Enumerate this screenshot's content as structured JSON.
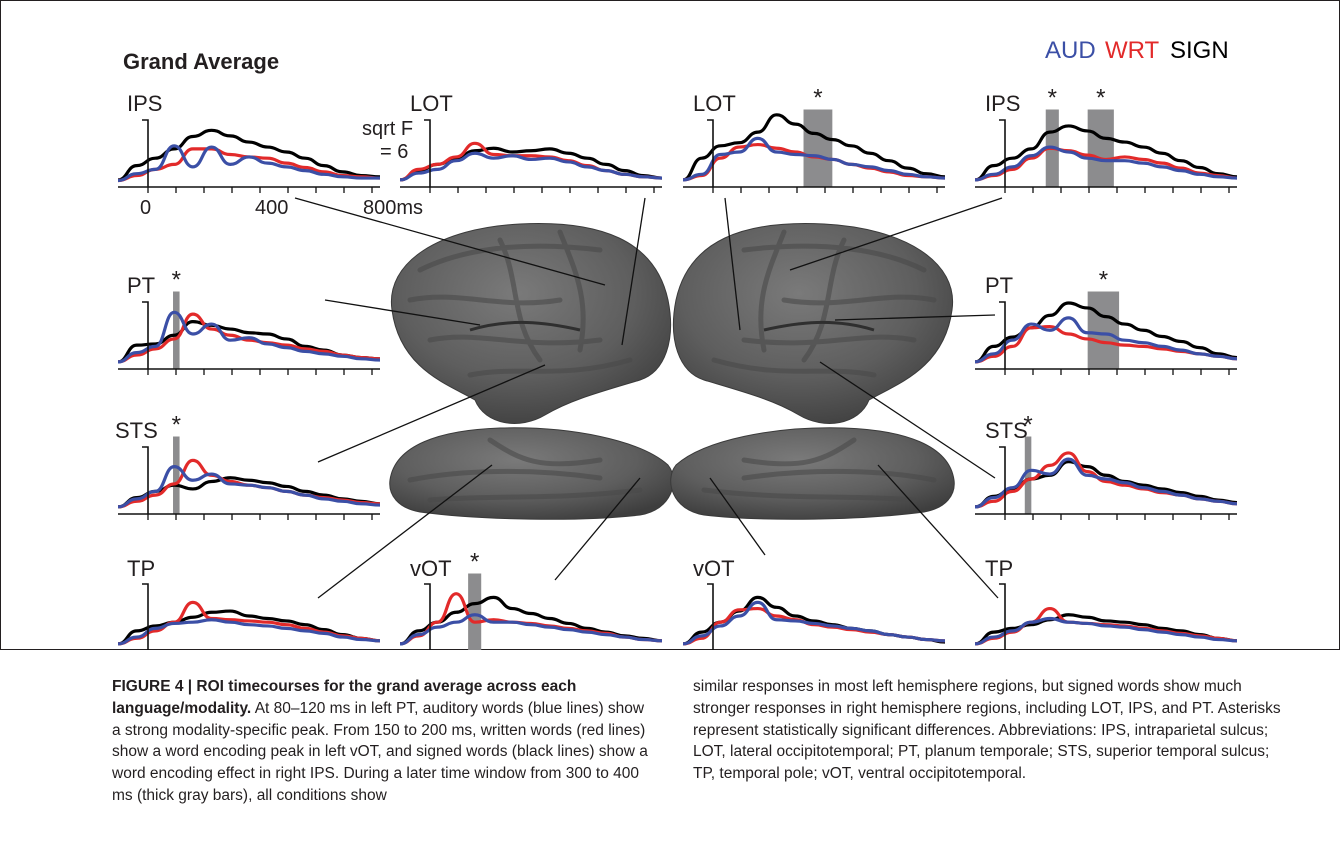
{
  "figure": {
    "panel_title": "Grand Average",
    "legend": [
      {
        "label": "AUD",
        "color": "#3b4fa6"
      },
      {
        "label": "WRT",
        "color": "#e22a2a"
      },
      {
        "label": "SIGN",
        "color": "#000000"
      }
    ],
    "scale": {
      "line1": "sqrt F",
      "line2": "= 6"
    },
    "time_ticks": [
      "0",
      "400",
      "800ms"
    ],
    "significance_marker": "*",
    "bar_color": "#8c8c8e"
  },
  "chart_data": [
    {
      "type": "line",
      "roi": "IPS",
      "hemisphere": "left",
      "series": [
        {
          "name": "SIGN",
          "values": [
            0.05,
            0.28,
            0.4,
            0.55,
            0.75,
            0.85,
            0.76,
            0.66,
            0.58,
            0.5,
            0.4,
            0.28,
            0.18,
            0.12,
            0.1
          ]
        },
        {
          "name": "WRT",
          "values": [
            0.04,
            0.12,
            0.22,
            0.3,
            0.55,
            0.55,
            0.46,
            0.42,
            0.4,
            0.32,
            0.25,
            0.18,
            0.12,
            0.1,
            0.08
          ]
        },
        {
          "name": "AUD",
          "values": [
            0.04,
            0.15,
            0.22,
            0.6,
            0.26,
            0.58,
            0.3,
            0.42,
            0.32,
            0.26,
            0.2,
            0.14,
            0.1,
            0.08,
            0.08
          ]
        }
      ],
      "sig": []
    },
    {
      "type": "line",
      "roi": "LOT",
      "hemisphere": "left",
      "series": [
        {
          "name": "SIGN",
          "values": [
            0.05,
            0.2,
            0.3,
            0.4,
            0.52,
            0.56,
            0.5,
            0.52,
            0.55,
            0.48,
            0.4,
            0.3,
            0.2,
            0.12,
            0.08
          ]
        },
        {
          "name": "WRT",
          "values": [
            0.05,
            0.22,
            0.3,
            0.42,
            0.64,
            0.46,
            0.44,
            0.44,
            0.42,
            0.36,
            0.28,
            0.2,
            0.14,
            0.1,
            0.08
          ]
        },
        {
          "name": "AUD",
          "values": [
            0.05,
            0.16,
            0.22,
            0.36,
            0.48,
            0.4,
            0.44,
            0.38,
            0.4,
            0.34,
            0.26,
            0.2,
            0.14,
            0.1,
            0.08
          ]
        }
      ],
      "sig": []
    },
    {
      "type": "line",
      "roi": "LOT",
      "hemisphere": "right",
      "series": [
        {
          "name": "SIGN",
          "values": [
            0.05,
            0.4,
            0.6,
            0.65,
            0.82,
            1.1,
            0.95,
            0.8,
            0.7,
            0.6,
            0.48,
            0.36,
            0.24,
            0.15,
            0.1
          ]
        },
        {
          "name": "WRT",
          "values": [
            0.05,
            0.12,
            0.4,
            0.58,
            0.62,
            0.56,
            0.5,
            0.42,
            0.38,
            0.3,
            0.24,
            0.18,
            0.12,
            0.1,
            0.08
          ]
        },
        {
          "name": "AUD",
          "values": [
            0.05,
            0.14,
            0.46,
            0.5,
            0.72,
            0.5,
            0.46,
            0.44,
            0.38,
            0.3,
            0.26,
            0.2,
            0.14,
            0.1,
            0.08
          ]
        }
      ],
      "sig": [
        {
          "from": 0.46,
          "to": 0.57
        }
      ]
    },
    {
      "type": "line",
      "roi": "IPS",
      "hemisphere": "right",
      "series": [
        {
          "name": "SIGN",
          "values": [
            0.05,
            0.28,
            0.4,
            0.55,
            0.82,
            0.92,
            0.84,
            0.72,
            0.66,
            0.58,
            0.48,
            0.36,
            0.25,
            0.15,
            0.1
          ]
        },
        {
          "name": "WRT",
          "values": [
            0.05,
            0.12,
            0.22,
            0.4,
            0.56,
            0.52,
            0.45,
            0.38,
            0.42,
            0.38,
            0.32,
            0.24,
            0.16,
            0.12,
            0.08
          ]
        },
        {
          "name": "AUD",
          "values": [
            0.05,
            0.14,
            0.26,
            0.44,
            0.58,
            0.5,
            0.4,
            0.36,
            0.36,
            0.32,
            0.26,
            0.2,
            0.14,
            0.1,
            0.08
          ]
        }
      ],
      "sig": [
        {
          "from": 0.27,
          "to": 0.32
        },
        {
          "from": 0.43,
          "to": 0.53
        }
      ]
    },
    {
      "type": "line",
      "roi": "PT",
      "hemisphere": "left",
      "series": [
        {
          "name": "SIGN",
          "values": [
            0.05,
            0.32,
            0.34,
            0.48,
            0.7,
            0.64,
            0.58,
            0.52,
            0.5,
            0.42,
            0.3,
            0.24,
            0.16,
            0.12,
            0.1
          ]
        },
        {
          "name": "WRT",
          "values": [
            0.05,
            0.16,
            0.26,
            0.42,
            0.82,
            0.58,
            0.48,
            0.4,
            0.36,
            0.32,
            0.26,
            0.22,
            0.16,
            0.12,
            0.1
          ]
        },
        {
          "name": "AUD",
          "values": [
            0.05,
            0.2,
            0.3,
            0.85,
            0.5,
            0.66,
            0.4,
            0.44,
            0.34,
            0.28,
            0.22,
            0.18,
            0.14,
            0.1,
            0.08
          ]
        }
      ],
      "sig": [
        {
          "from": 0.21,
          "to": 0.235
        }
      ]
    },
    {
      "type": "line",
      "roi": "PT",
      "hemisphere": "right",
      "series": [
        {
          "name": "SIGN",
          "values": [
            0.05,
            0.3,
            0.45,
            0.6,
            0.8,
            1.0,
            0.92,
            0.78,
            0.66,
            0.56,
            0.46,
            0.38,
            0.28,
            0.18,
            0.12
          ]
        },
        {
          "name": "WRT",
          "values": [
            0.05,
            0.14,
            0.3,
            0.6,
            0.62,
            0.5,
            0.42,
            0.36,
            0.32,
            0.3,
            0.26,
            0.22,
            0.18,
            0.14,
            0.1
          ]
        },
        {
          "name": "AUD",
          "values": [
            0.05,
            0.18,
            0.4,
            0.66,
            0.56,
            0.76,
            0.52,
            0.5,
            0.4,
            0.36,
            0.3,
            0.24,
            0.18,
            0.14,
            0.1
          ]
        }
      ],
      "sig": [
        {
          "from": 0.43,
          "to": 0.55
        }
      ]
    },
    {
      "type": "line",
      "roi": "STS",
      "hemisphere": "left",
      "series": [
        {
          "name": "SIGN",
          "values": [
            0.05,
            0.2,
            0.3,
            0.4,
            0.34,
            0.46,
            0.52,
            0.48,
            0.44,
            0.38,
            0.3,
            0.24,
            0.18,
            0.14,
            0.1
          ]
        },
        {
          "name": "WRT",
          "values": [
            0.05,
            0.14,
            0.24,
            0.42,
            0.8,
            0.56,
            0.46,
            0.4,
            0.36,
            0.3,
            0.24,
            0.2,
            0.16,
            0.12,
            0.1
          ]
        },
        {
          "name": "AUD",
          "values": [
            0.05,
            0.18,
            0.3,
            0.7,
            0.48,
            0.58,
            0.42,
            0.4,
            0.36,
            0.3,
            0.24,
            0.18,
            0.14,
            0.1,
            0.08
          ]
        }
      ],
      "sig": [
        {
          "from": 0.21,
          "to": 0.235
        }
      ]
    },
    {
      "type": "line",
      "roi": "STS",
      "hemisphere": "right",
      "series": [
        {
          "name": "SIGN",
          "values": [
            0.05,
            0.22,
            0.34,
            0.5,
            0.56,
            0.78,
            0.7,
            0.56,
            0.46,
            0.4,
            0.34,
            0.28,
            0.22,
            0.16,
            0.12
          ]
        },
        {
          "name": "WRT",
          "values": [
            0.05,
            0.14,
            0.3,
            0.5,
            0.72,
            0.92,
            0.62,
            0.46,
            0.4,
            0.34,
            0.28,
            0.24,
            0.18,
            0.14,
            0.1
          ]
        },
        {
          "name": "AUD",
          "values": [
            0.05,
            0.2,
            0.36,
            0.64,
            0.58,
            0.82,
            0.56,
            0.5,
            0.44,
            0.36,
            0.3,
            0.24,
            0.18,
            0.14,
            0.1
          ]
        }
      ],
      "sig": [
        {
          "from": 0.19,
          "to": 0.215
        }
      ]
    },
    {
      "type": "line",
      "roi": "TP",
      "hemisphere": "left",
      "series": [
        {
          "name": "SIGN",
          "values": [
            0.05,
            0.26,
            0.34,
            0.4,
            0.48,
            0.56,
            0.58,
            0.5,
            0.46,
            0.42,
            0.36,
            0.28,
            0.2,
            0.14,
            0.1
          ]
        },
        {
          "name": "WRT",
          "values": [
            0.05,
            0.14,
            0.26,
            0.4,
            0.72,
            0.46,
            0.44,
            0.42,
            0.4,
            0.36,
            0.3,
            0.24,
            0.18,
            0.14,
            0.1
          ]
        },
        {
          "name": "AUD",
          "values": [
            0.05,
            0.16,
            0.3,
            0.38,
            0.4,
            0.44,
            0.4,
            0.36,
            0.34,
            0.3,
            0.26,
            0.22,
            0.16,
            0.12,
            0.1
          ]
        }
      ],
      "sig": []
    },
    {
      "type": "line",
      "roi": "vOT",
      "hemisphere": "left",
      "series": [
        {
          "name": "SIGN",
          "values": [
            0.05,
            0.26,
            0.4,
            0.56,
            0.7,
            0.8,
            0.62,
            0.54,
            0.46,
            0.38,
            0.3,
            0.24,
            0.18,
            0.14,
            0.1
          ]
        },
        {
          "name": "WRT",
          "values": [
            0.05,
            0.18,
            0.4,
            0.86,
            0.4,
            0.44,
            0.4,
            0.38,
            0.34,
            0.3,
            0.26,
            0.22,
            0.16,
            0.12,
            0.1
          ]
        },
        {
          "name": "AUD",
          "values": [
            0.05,
            0.2,
            0.32,
            0.4,
            0.52,
            0.4,
            0.4,
            0.36,
            0.32,
            0.28,
            0.24,
            0.2,
            0.16,
            0.12,
            0.1
          ]
        }
      ],
      "sig": [
        {
          "from": 0.26,
          "to": 0.31
        }
      ]
    },
    {
      "type": "line",
      "roi": "vOT",
      "hemisphere": "right",
      "series": [
        {
          "name": "SIGN",
          "values": [
            0.05,
            0.24,
            0.4,
            0.58,
            0.8,
            0.64,
            0.5,
            0.42,
            0.36,
            0.3,
            0.26,
            0.2,
            0.16,
            0.12,
            0.08
          ]
        },
        {
          "name": "WRT",
          "values": [
            0.05,
            0.14,
            0.4,
            0.6,
            0.62,
            0.5,
            0.44,
            0.36,
            0.32,
            0.28,
            0.24,
            0.2,
            0.16,
            0.12,
            0.1
          ]
        },
        {
          "name": "AUD",
          "values": [
            0.05,
            0.18,
            0.34,
            0.5,
            0.72,
            0.44,
            0.42,
            0.38,
            0.34,
            0.3,
            0.26,
            0.2,
            0.16,
            0.12,
            0.1
          ]
        }
      ],
      "sig": []
    },
    {
      "type": "line",
      "roi": "TP",
      "hemisphere": "right",
      "series": [
        {
          "name": "SIGN",
          "values": [
            0.05,
            0.24,
            0.3,
            0.36,
            0.44,
            0.52,
            0.48,
            0.42,
            0.4,
            0.36,
            0.3,
            0.26,
            0.2,
            0.14,
            0.1
          ]
        },
        {
          "name": "WRT",
          "values": [
            0.05,
            0.14,
            0.24,
            0.4,
            0.62,
            0.4,
            0.38,
            0.36,
            0.34,
            0.3,
            0.26,
            0.22,
            0.18,
            0.14,
            0.1
          ]
        },
        {
          "name": "AUD",
          "values": [
            0.05,
            0.16,
            0.26,
            0.4,
            0.46,
            0.4,
            0.38,
            0.34,
            0.32,
            0.28,
            0.24,
            0.2,
            0.16,
            0.12,
            0.1
          ]
        }
      ],
      "sig": []
    }
  ],
  "caption": {
    "label": "FIGURE 4 | ROI timecourses for the grand average across each language/modality.",
    "left_text": "At 80–120 ms in left PT, auditory words (blue lines) show a strong modality-specific peak. From 150 to 200 ms, written words (red lines) show a word encoding peak in left vOT, and signed words (black lines) show a word encoding effect in right IPS. During a later time window from 300 to 400 ms (thick gray bars), all conditions show",
    "right_text": "similar responses in most left hemisphere regions, but signed words show much stronger responses in right hemisphere regions, including LOT, IPS, and PT. Asterisks represent statistically significant differences. Abbreviations: IPS, intraparietal sulcus; LOT, lateral occipitotemporal; PT, planum temporale; STS, superior temporal sulcus; TP, temporal pole; vOT, ventral occipitotemporal."
  }
}
